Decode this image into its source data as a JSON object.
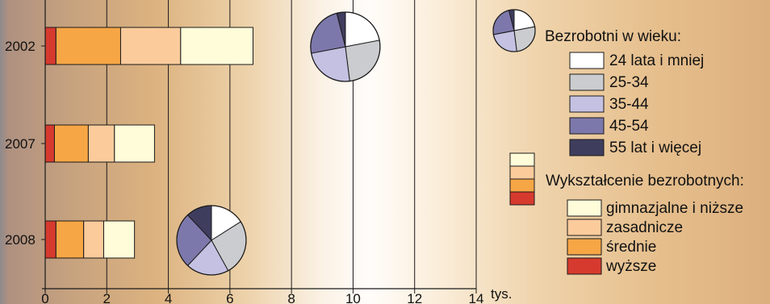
{
  "chart_data": {
    "type": "bar",
    "stacked": true,
    "orientation": "horizontal",
    "categories": [
      "2002",
      "2007",
      "2008"
    ],
    "x_ticks": [
      "0",
      "2",
      "4",
      "6",
      "8",
      "10",
      "12",
      "14"
    ],
    "xlim": [
      0,
      14
    ],
    "x_unit": "tys.",
    "grid": true,
    "series": [
      {
        "name": "wyższe",
        "color": "#d63a2e",
        "values": [
          0.35,
          0.3,
          0.35
        ]
      },
      {
        "name": "średnie",
        "color": "#f7a645",
        "values": [
          2.1,
          1.1,
          0.9
        ]
      },
      {
        "name": "zasadnicze",
        "color": "#fbcb9c",
        "values": [
          1.95,
          0.85,
          0.65
        ]
      },
      {
        "name": "gimnazjalne i niższe",
        "color": "#fefcd9",
        "values": [
          2.35,
          1.3,
          1.0
        ]
      }
    ],
    "pies": [
      {
        "category": "2002",
        "center_x_value": 9.75,
        "slices": [
          {
            "name": "24 lata i mniej",
            "value": 22
          },
          {
            "name": "25-34",
            "value": 26
          },
          {
            "name": "35-44",
            "value": 24
          },
          {
            "name": "45-54",
            "value": 24
          },
          {
            "name": "55 lat i więcej",
            "value": 4
          }
        ]
      },
      {
        "category": "2008",
        "center_x_value": 5.4,
        "slices": [
          {
            "name": "24 lata i mniej",
            "value": 16
          },
          {
            "name": "25-34",
            "value": 26
          },
          {
            "name": "35-44",
            "value": 20
          },
          {
            "name": "45-54",
            "value": 26
          },
          {
            "name": "55 lat i więcej",
            "value": 12
          }
        ]
      }
    ],
    "age_legend": {
      "title": "Bezrobotni w wieku:",
      "items": [
        {
          "name": "24 lata i mniej",
          "color": "#ffffff"
        },
        {
          "name": "25-34",
          "color": "#cbcccf"
        },
        {
          "name": "35-44",
          "color": "#c4c1e2"
        },
        {
          "name": "45-54",
          "color": "#7d78ab"
        },
        {
          "name": "55 lat i więcej",
          "color": "#3f3d5e"
        }
      ],
      "icon_values": [
        22,
        26,
        24,
        24,
        4
      ]
    },
    "education_legend": {
      "title": "Wykształcenie bezrobotnych:",
      "items": [
        {
          "name": "gimnazjalne i niższe",
          "color": "#fefcd9"
        },
        {
          "name": "zasadnicze",
          "color": "#fbcb9c"
        },
        {
          "name": "średnie",
          "color": "#f7a645"
        },
        {
          "name": "wyższe",
          "color": "#d63a2e"
        }
      ]
    }
  }
}
